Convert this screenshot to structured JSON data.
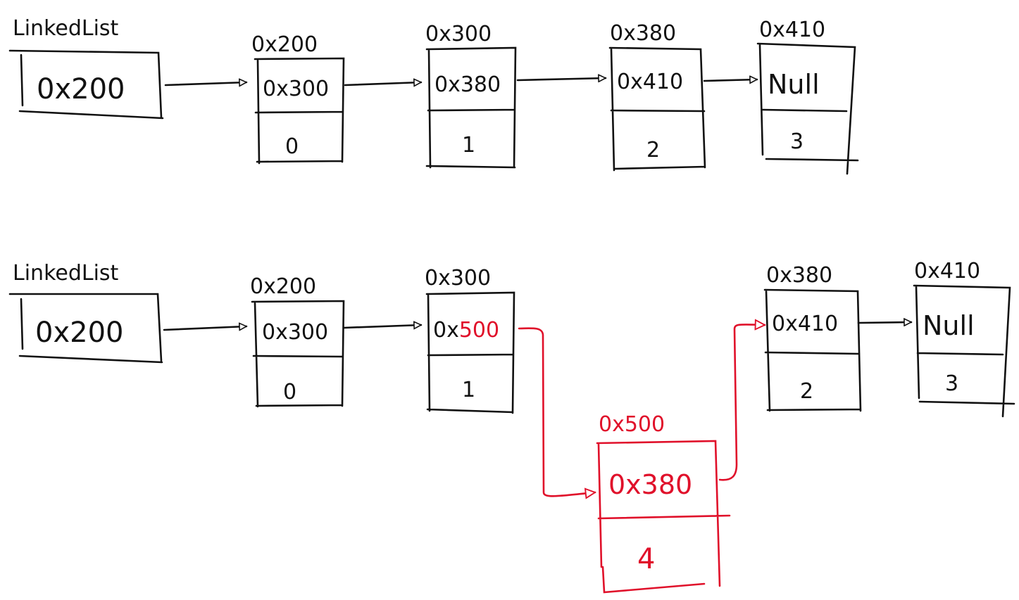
{
  "colors": {
    "ink": "#111111",
    "highlight": "#e0102a",
    "background": "#ffffff"
  },
  "before": {
    "head_label": "LinkedList",
    "head_value": "0x200",
    "nodes": [
      {
        "address": "0x200",
        "next": "0x300",
        "value": "0"
      },
      {
        "address": "0x300",
        "next": "0x380",
        "value": "1"
      },
      {
        "address": "0x380",
        "next": "0x410",
        "value": "2"
      },
      {
        "address": "0x410",
        "next": "Null",
        "value": "3"
      }
    ]
  },
  "after": {
    "head_label": "LinkedList",
    "head_value": "0x200",
    "nodes": [
      {
        "address": "0x200",
        "next": "0x300",
        "value": "0"
      },
      {
        "address": "0x300",
        "next_prefix": "0x",
        "next_changed": "500",
        "value": "1"
      },
      {
        "address": "0x380",
        "next": "0x410",
        "value": "2"
      },
      {
        "address": "0x410",
        "next": "Null",
        "value": "3"
      }
    ],
    "inserted_node": {
      "address": "0x500",
      "next": "0x380",
      "value": "4"
    }
  }
}
